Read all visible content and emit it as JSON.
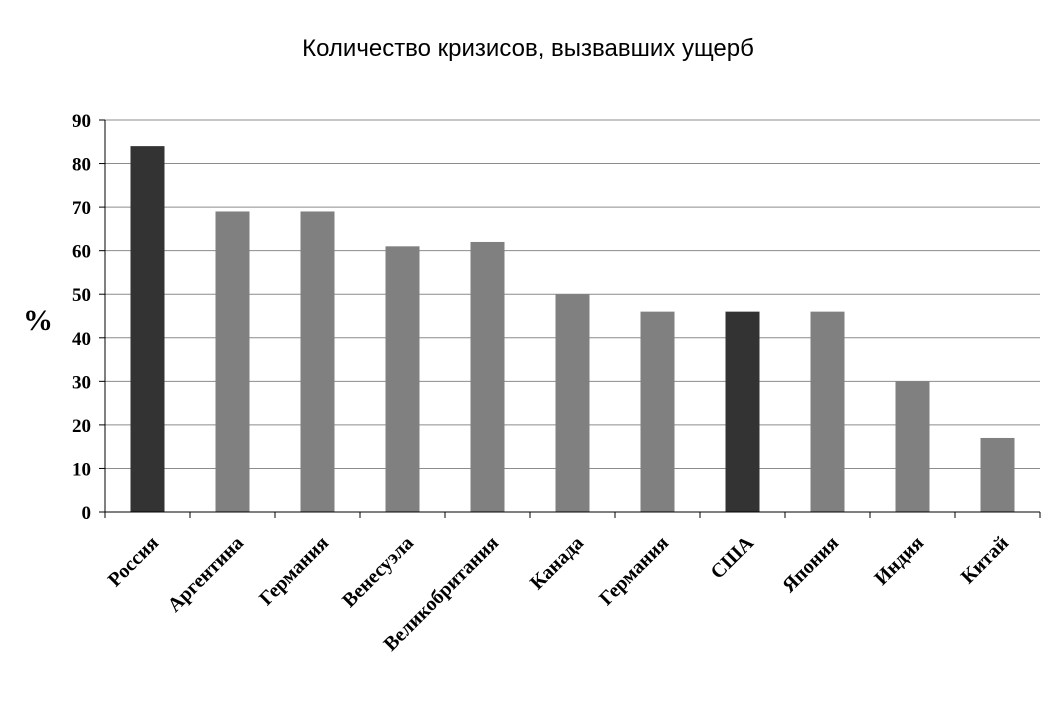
{
  "chart_data": {
    "type": "bar",
    "title": "Количество кризисов, вызвавших ущерб",
    "xlabel": "",
    "ylabel": "%",
    "ylim": [
      0,
      90
    ],
    "yticks": [
      0,
      10,
      20,
      30,
      40,
      50,
      60,
      70,
      80,
      90
    ],
    "grid": true,
    "categories": [
      "Россия",
      "Аргентина",
      "Германия",
      "Венесуэла",
      "Великобритания",
      "Канада",
      "Германия",
      "США",
      "Япония",
      "Индия",
      "Китай"
    ],
    "values": [
      84,
      69,
      69,
      61,
      62,
      50,
      46,
      46,
      46,
      30,
      17
    ],
    "colors": {
      "highlight": "#333333",
      "default": "#808080"
    },
    "highlighted": [
      "Россия",
      "США"
    ]
  }
}
